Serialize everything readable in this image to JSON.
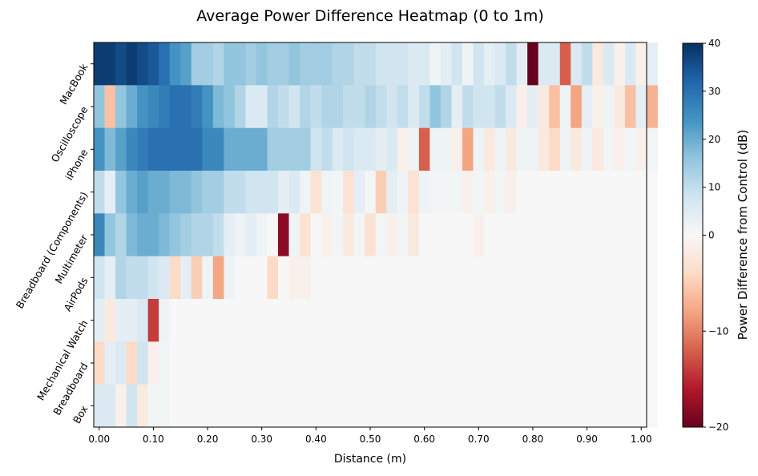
{
  "chart_data": {
    "type": "heatmap",
    "title": "Average Power Difference Heatmap (0 to 1m)",
    "xlabel": "Distance (m)",
    "ylabel": "",
    "colorbar_label": "Power Difference from Control (dB)",
    "x_start": -0.01,
    "x_step": 0.02,
    "xlim": [
      -0.01,
      1.01
    ],
    "x_ticks": [
      0.0,
      0.1,
      0.2,
      0.3,
      0.4,
      0.5,
      0.6,
      0.7,
      0.8,
      0.9,
      1.0
    ],
    "x_tick_labels": [
      "0.00",
      "0.10",
      "0.20",
      "0.30",
      "0.40",
      "0.50",
      "0.60",
      "0.70",
      "0.80",
      "0.90",
      "1.00"
    ],
    "rows": [
      "MacBook",
      "Oscilloscope",
      "iPhone",
      "Breadboard (Components)",
      "Multimeter",
      "AirPods",
      "Mechanical Watch",
      "Breadboard",
      "Box"
    ],
    "colorbar": {
      "vmin": -20,
      "vcenter": 0,
      "vmax": 40,
      "ticks": [
        40,
        30,
        20,
        10,
        0,
        -10,
        -20
      ],
      "tick_labels": [
        "40",
        "30",
        "20",
        "10",
        "0",
        "−10",
        "−20"
      ]
    },
    "colormap": "RdBu",
    "values": [
      [
        38,
        38,
        36,
        38,
        36,
        34,
        30,
        24,
        22,
        14,
        14,
        12,
        16,
        16,
        14,
        16,
        14,
        14,
        16,
        14,
        14,
        14,
        12,
        12,
        10,
        10,
        8,
        8,
        8,
        6,
        6,
        2,
        4,
        8,
        2,
        8,
        4,
        6,
        10,
        4,
        -20,
        6,
        6,
        -12,
        6,
        10,
        -2,
        6,
        -1,
        6,
        -1,
        4
      ],
      [
        16,
        -6,
        16,
        20,
        24,
        26,
        28,
        30,
        30,
        28,
        24,
        18,
        16,
        12,
        6,
        6,
        12,
        10,
        8,
        12,
        10,
        12,
        12,
        10,
        10,
        12,
        10,
        8,
        10,
        6,
        10,
        16,
        12,
        4,
        10,
        8,
        8,
        10,
        6,
        -1,
        4,
        -2,
        -6,
        2,
        -8,
        4,
        -1,
        2,
        -2,
        -6,
        4,
        -7
      ],
      [
        24,
        18,
        22,
        26,
        28,
        30,
        30,
        30,
        30,
        30,
        26,
        26,
        20,
        20,
        20,
        20,
        14,
        14,
        14,
        14,
        8,
        10,
        6,
        8,
        6,
        6,
        4,
        6,
        -1,
        2,
        -12,
        2,
        2,
        -1,
        -8,
        2,
        -2,
        2,
        -2,
        2,
        2,
        -2,
        -4,
        2,
        -2,
        2,
        -2,
        1,
        -1,
        1,
        -1,
        1
      ],
      [
        10,
        4,
        16,
        20,
        22,
        20,
        20,
        18,
        18,
        16,
        14,
        14,
        10,
        10,
        8,
        8,
        8,
        4,
        6,
        2,
        -3,
        2,
        1,
        -3,
        4,
        1,
        -5,
        4,
        2,
        -3,
        2,
        1,
        1,
        1,
        -1,
        1,
        -1,
        1,
        -1,
        0,
        0,
        0,
        0,
        0,
        0,
        0,
        0,
        0,
        0,
        0,
        0,
        0
      ],
      [
        26,
        16,
        12,
        18,
        20,
        20,
        18,
        16,
        14,
        12,
        12,
        10,
        4,
        2,
        4,
        2,
        0,
        -18,
        2,
        -3,
        0,
        -1,
        1,
        -2,
        1,
        -3,
        1,
        -1,
        1,
        -2,
        0,
        0,
        0,
        0,
        0,
        -1,
        0,
        0,
        0,
        0,
        0,
        0,
        0,
        0,
        0,
        0,
        0,
        0,
        0,
        0,
        0,
        0
      ],
      [
        8,
        4,
        12,
        10,
        10,
        8,
        6,
        -4,
        4,
        -5,
        2,
        -8,
        2,
        0,
        0,
        0,
        -4,
        0,
        -1,
        -1,
        0,
        0,
        0,
        0,
        0,
        0,
        0,
        0,
        0,
        0,
        0,
        0,
        0,
        0,
        0,
        0,
        0,
        0,
        0,
        0,
        0,
        0,
        0,
        0,
        0,
        0,
        0,
        0,
        0,
        0,
        0,
        0
      ],
      [
        4,
        -2,
        4,
        4,
        6,
        -14,
        2,
        0,
        0,
        0,
        0,
        0,
        0,
        0,
        0,
        0,
        0,
        0,
        0,
        0,
        0,
        0,
        0,
        0,
        0,
        0,
        0,
        0,
        0,
        0,
        0,
        0,
        0,
        0,
        0,
        0,
        0,
        0,
        0,
        0,
        0,
        0,
        0,
        0,
        0,
        0,
        0,
        0,
        0,
        0,
        0,
        0
      ],
      [
        -4,
        4,
        6,
        -4,
        8,
        -1,
        1,
        0,
        0,
        0,
        0,
        0,
        0,
        0,
        0,
        0,
        0,
        0,
        0,
        0,
        0,
        0,
        0,
        0,
        0,
        0,
        0,
        0,
        0,
        0,
        0,
        0,
        0,
        0,
        0,
        0,
        0,
        0,
        0,
        0,
        0,
        0,
        0,
        0,
        0,
        0,
        0,
        0,
        0,
        0,
        0,
        0
      ],
      [
        6,
        6,
        -1,
        8,
        -2,
        1,
        1,
        0,
        0,
        0,
        0,
        0,
        0,
        0,
        0,
        0,
        0,
        0,
        0,
        0,
        0,
        0,
        0,
        0,
        0,
        0,
        0,
        0,
        0,
        0,
        0,
        0,
        0,
        0,
        0,
        0,
        0,
        0,
        0,
        0,
        0,
        0,
        0,
        0,
        0,
        0,
        0,
        0,
        0,
        0,
        0,
        0
      ]
    ]
  }
}
